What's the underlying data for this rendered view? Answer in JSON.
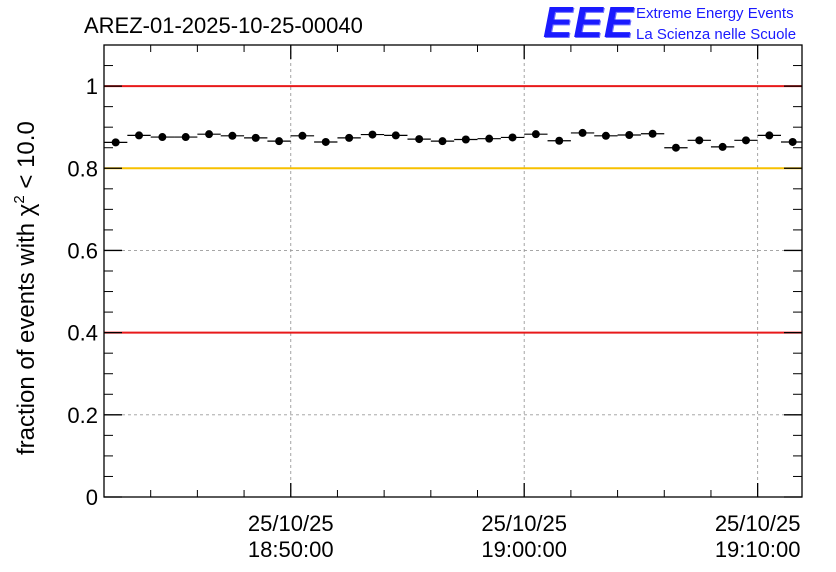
{
  "chart_data": {
    "type": "scatter",
    "title": "AREZ-01-2025-10-25-00040",
    "xlabel": "",
    "ylabel": "fraction of events with χ",
    "ylabel_sup": "2",
    "ylabel_tail": " < 10.0",
    "ylim": [
      0,
      1.1
    ],
    "yticks": [
      0,
      0.2,
      0.4,
      0.6,
      0.8,
      1
    ],
    "ytick_labels": [
      "0",
      "0.2",
      "0.4",
      "0.6",
      "0.8",
      "1"
    ],
    "x_units": "minutes since 18:40:00",
    "xlim": [
      -1.3,
      28.6
    ],
    "xticks": [
      {
        "x": 6.7,
        "date": "25/10/25",
        "time": "18:50:00"
      },
      {
        "x": 16.7,
        "date": "25/10/25",
        "time": "19:00:00"
      },
      {
        "x": 26.7,
        "date": "25/10/25",
        "time": "19:10:00"
      }
    ],
    "grid": true,
    "reference_lines": [
      {
        "y": 1.0,
        "color": "#e8191a"
      },
      {
        "y": 0.8,
        "color": "#f7c000"
      },
      {
        "y": 0.4,
        "color": "#e8191a"
      }
    ],
    "series": [
      {
        "name": "fraction",
        "bin_width": 1.0,
        "x": [
          -0.8,
          0.2,
          1.2,
          2.2,
          3.2,
          4.2,
          5.2,
          6.2,
          7.2,
          8.2,
          9.2,
          10.2,
          11.2,
          12.2,
          13.2,
          14.2,
          15.2,
          16.2,
          17.2,
          18.2,
          19.2,
          20.2,
          21.2,
          22.2,
          23.2,
          24.2,
          25.2,
          26.2,
          27.2,
          28.2
        ],
        "values": [
          0.863,
          0.88,
          0.876,
          0.876,
          0.883,
          0.879,
          0.874,
          0.866,
          0.879,
          0.864,
          0.874,
          0.882,
          0.88,
          0.871,
          0.866,
          0.87,
          0.872,
          0.875,
          0.883,
          0.867,
          0.886,
          0.879,
          0.881,
          0.884,
          0.85,
          0.868,
          0.852,
          0.868,
          0.88,
          0.864
        ]
      }
    ]
  },
  "logo": {
    "mark": "EEE",
    "line1": "Extreme Energy Events",
    "line2": "La Scienza nelle Scuole",
    "color": "#1a1aff"
  }
}
